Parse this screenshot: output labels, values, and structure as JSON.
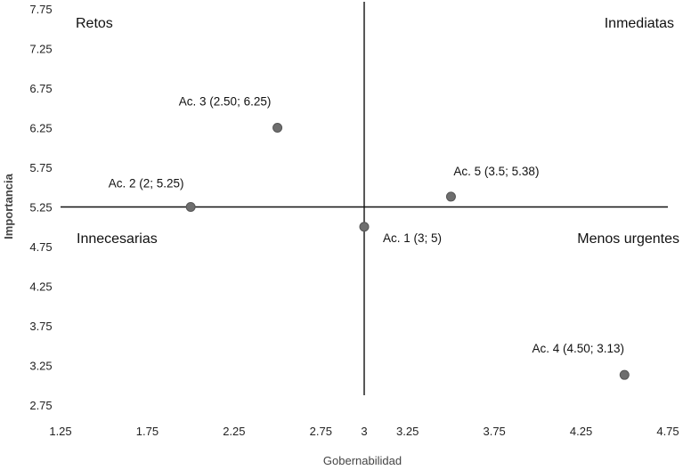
{
  "chart_data": {
    "type": "scatter",
    "title": "",
    "xlabel": "Gobernabilidad",
    "ylabel": "Importancia",
    "xlim": [
      1.25,
      4.75
    ],
    "ylim": [
      2.75,
      7.75
    ],
    "x_ticks": [
      "1.25",
      "1.75",
      "2.25",
      "2.75",
      "3",
      "3.25",
      "3.75",
      "4.25",
      "4.75"
    ],
    "x_tick_values": [
      1.25,
      1.75,
      2.25,
      2.75,
      3,
      3.25,
      3.75,
      4.25,
      4.75
    ],
    "y_ticks": [
      "7.75",
      "7.25",
      "6.75",
      "6.25",
      "5.75",
      "5.25",
      "4.75",
      "4.25",
      "3.75",
      "3.25",
      "2.75"
    ],
    "y_tick_values": [
      7.75,
      7.25,
      6.75,
      6.25,
      5.75,
      5.25,
      4.75,
      4.25,
      3.75,
      3.25,
      2.75
    ],
    "reference_lines": {
      "x": 3,
      "y": 5.25
    },
    "quadrants": {
      "top_left": "Retos",
      "top_right": "Inmediatas",
      "bottom_left": "Innecesarias",
      "bottom_right": "Menos urgentes"
    },
    "points": [
      {
        "x": 3,
        "y": 5,
        "label": "Ac. 1 (3; 5)"
      },
      {
        "x": 2,
        "y": 5.25,
        "label": "Ac. 2 (2; 5.25)"
      },
      {
        "x": 2.5,
        "y": 6.25,
        "label": "Ac. 3 (2.50; 6.25)"
      },
      {
        "x": 4.5,
        "y": 3.13,
        "label": "Ac. 4 (4.50; 3.13)"
      },
      {
        "x": 3.5,
        "y": 5.38,
        "label": "Ac. 5 (3.5; 5.38)"
      }
    ],
    "grid": false,
    "point_color": "#6e6e6e"
  }
}
